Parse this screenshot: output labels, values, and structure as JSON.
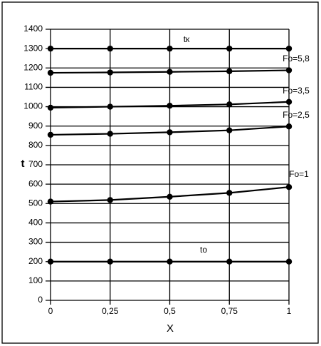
{
  "chart_data": {
    "type": "line",
    "xlabel": "X",
    "ylabel": "t",
    "x": [
      0,
      0.25,
      0.5,
      0.75,
      1
    ],
    "series": [
      {
        "name": "tк",
        "color": "#000000",
        "values": [
          1300,
          1300,
          1300,
          1300,
          1300
        ]
      },
      {
        "name": "Fo=5,8",
        "color": "#000000",
        "values": [
          1175,
          1177,
          1180,
          1183,
          1188
        ]
      },
      {
        "name": "Fo=3,5",
        "color": "#000000",
        "values": [
          995,
          1000,
          1005,
          1012,
          1025
        ]
      },
      {
        "name": "Fo=2,5",
        "color": "#000000",
        "values": [
          855,
          860,
          868,
          878,
          898
        ]
      },
      {
        "name": "Fo=1",
        "color": "#000000",
        "values": [
          510,
          518,
          535,
          555,
          585
        ]
      },
      {
        "name": "to",
        "color": "#000000",
        "values": [
          200,
          200,
          200,
          200,
          200
        ]
      }
    ],
    "xlim": [
      0,
      1
    ],
    "ylim": [
      0,
      1400
    ],
    "xticks": [
      0,
      {
        "value": 0.25,
        "label": "0,25"
      },
      {
        "value": 0.5,
        "label": "0,5"
      },
      {
        "value": 0.75,
        "label": "0,75"
      },
      1
    ],
    "yticks": [
      0,
      100,
      200,
      300,
      400,
      500,
      600,
      700,
      800,
      900,
      1000,
      1100,
      1200,
      1300,
      1400
    ],
    "grid": true
  }
}
